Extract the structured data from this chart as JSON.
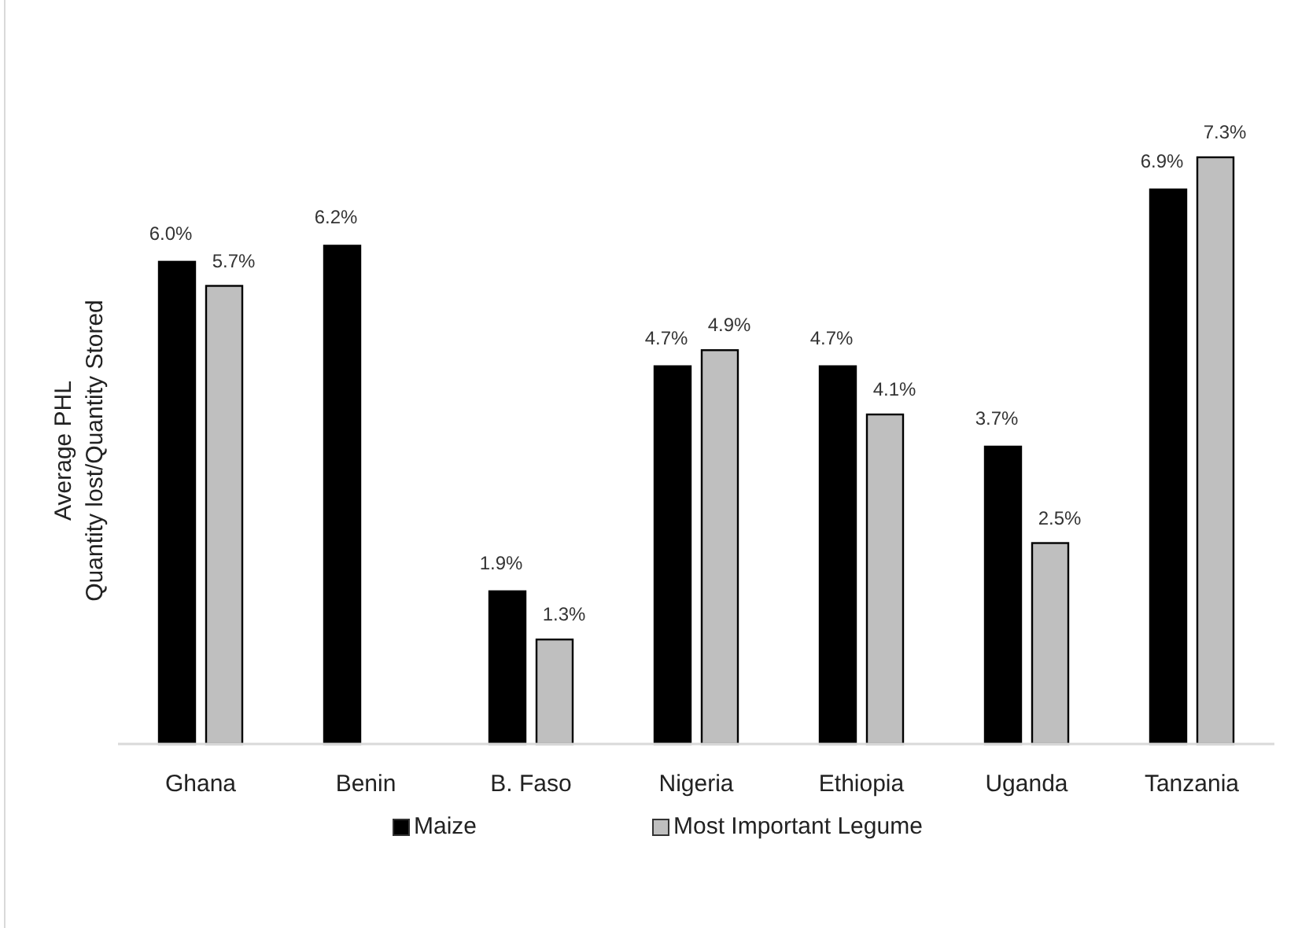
{
  "chart_data": {
    "type": "bar",
    "ylabel": "Average PHL\nQuantity lost/Quantity Stored",
    "categories": [
      "Ghana",
      "Benin",
      "B. Faso",
      "Nigeria",
      "Ethiopia",
      "Uganda",
      "Tanzania"
    ],
    "series": [
      {
        "name": "Maize",
        "color": "#000000",
        "values": [
          6.0,
          6.2,
          1.9,
          4.7,
          4.7,
          3.7,
          6.9
        ],
        "value_labels": [
          "6.0%",
          "6.2%",
          "1.9%",
          "4.7%",
          "4.7%",
          "3.7%",
          "6.9%"
        ]
      },
      {
        "name": "Most Important Legume",
        "color": "#bfbfbf",
        "values": [
          5.7,
          null,
          1.3,
          4.9,
          4.1,
          2.5,
          7.3
        ],
        "value_labels": [
          "5.7%",
          null,
          "1.3%",
          "4.9%",
          "4.1%",
          "2.5%",
          "7.3%"
        ]
      }
    ],
    "legend": "bottom"
  }
}
